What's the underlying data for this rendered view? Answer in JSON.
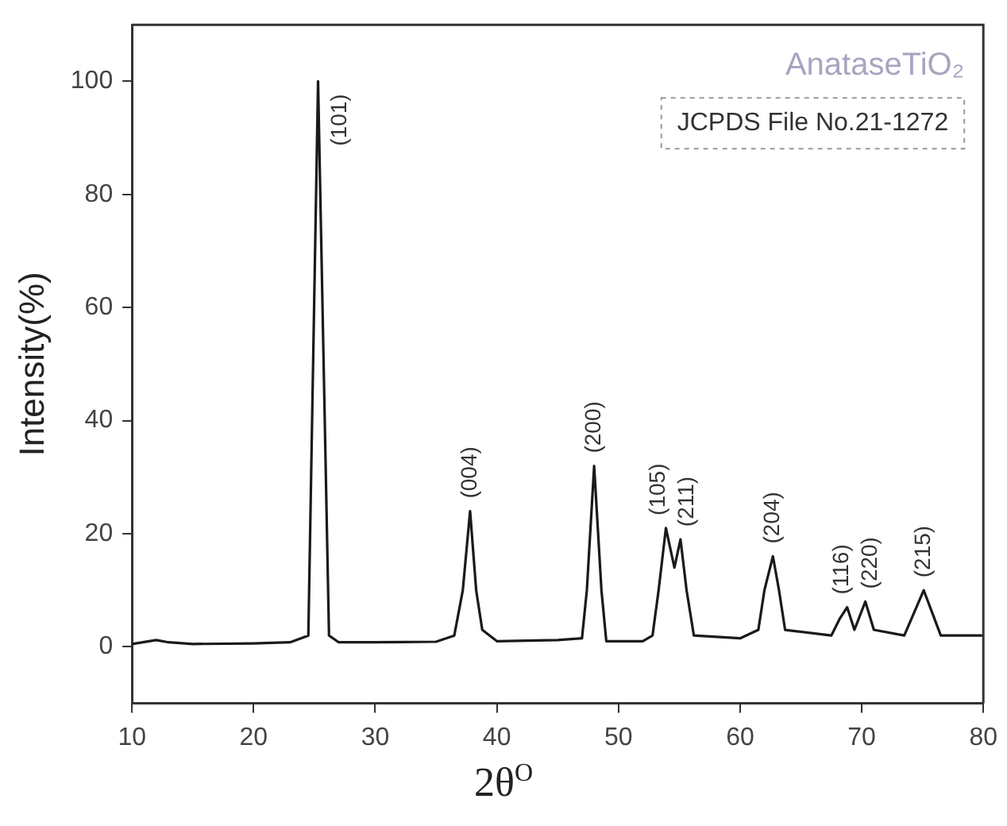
{
  "chart_data": {
    "type": "line",
    "xlabel": "2θ$^{O}$",
    "ylabel": "Intensity(%)",
    "x": [
      10,
      12,
      13,
      15,
      20,
      23,
      24.5,
      25.3,
      26.2,
      27,
      30,
      35,
      36.5,
      37.2,
      37.8,
      38.3,
      38.8,
      40,
      45,
      47,
      47.4,
      48.0,
      48.6,
      49,
      52,
      52.8,
      53.3,
      53.9,
      54.6,
      55.1,
      55.6,
      56.2,
      60,
      61.5,
      62.0,
      62.7,
      63.2,
      63.7,
      67.5,
      68.2,
      68.8,
      69.4,
      70.3,
      71,
      73.5,
      74.3,
      75.1,
      75.8,
      76.5,
      80
    ],
    "series": [
      {
        "color": "#1a1a1a",
        "values": [
          0.5,
          1.2,
          0.8,
          0.5,
          0.6,
          0.8,
          2,
          100,
          2,
          0.8,
          0.8,
          0.9,
          2,
          10,
          24,
          10,
          3,
          1,
          1.2,
          1.5,
          10,
          32,
          10,
          1,
          1,
          2,
          10,
          21,
          14,
          19,
          10,
          2,
          1.5,
          3,
          10,
          16,
          10,
          3,
          2,
          5,
          7,
          3,
          8,
          3,
          2,
          6,
          10,
          6,
          2,
          2
        ]
      }
    ],
    "xlim": [
      10,
      80
    ],
    "xticks": [
      10,
      20,
      30,
      40,
      50,
      60,
      70,
      80
    ],
    "ylim": [
      -10,
      110
    ],
    "yticks": [
      0,
      20,
      40,
      60,
      80,
      100
    ],
    "grid": false,
    "legend": false,
    "marker": "none",
    "line_style": "solid",
    "annotations": [
      "AnataseTiO₂",
      "JCPDS File No.21-1272",
      {
        "text": "(101)",
        "x": 25.3,
        "y": 100
      },
      {
        "text": "(004)",
        "x": 37.8,
        "y": 24
      },
      {
        "text": "(200)",
        "x": 48.0,
        "y": 32
      },
      {
        "text": "(105)",
        "x": 53.9,
        "y": 21
      },
      {
        "text": "(211)",
        "x": 55.1,
        "y": 19
      },
      {
        "text": "(204)",
        "x": 62.7,
        "y": 16
      },
      {
        "text": "(116)",
        "x": 68.8,
        "y": 7
      },
      {
        "text": "(220)",
        "x": 70.3,
        "y": 8
      },
      {
        "text": "(215)",
        "x": 75.1,
        "y": 10
      }
    ]
  }
}
